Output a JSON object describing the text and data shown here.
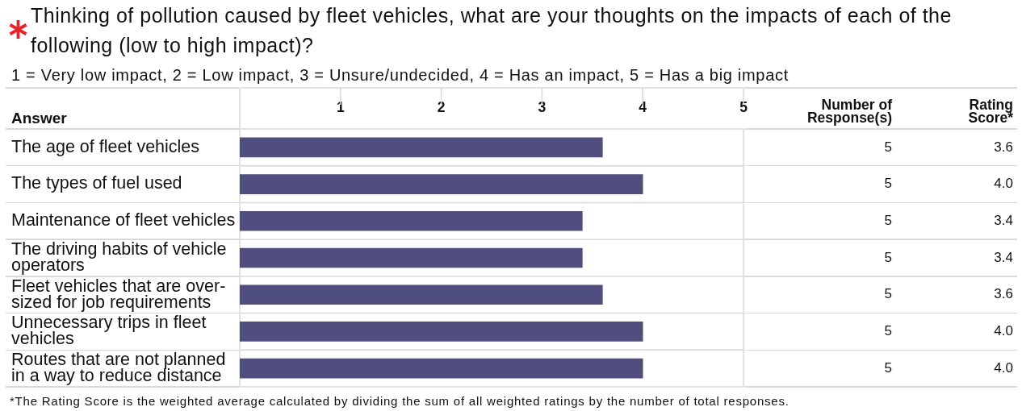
{
  "chart_data": {
    "type": "bar",
    "orientation": "horizontal",
    "title": "Thinking of pollution caused by fleet vehicles, what are your thoughts on the impacts of each of the following (low to high impact)?",
    "subtitle": "1 = Very low impact, 2 = Low impact, 3 = Unsure/undecided, 4 = Has an impact, 5 = Has a big impact",
    "ylabel": "Answer",
    "categories": [
      "The age of fleet vehicles",
      "The types of fuel used",
      "Maintenance of fleet vehicles",
      "The driving habits of vehicle operators",
      "Fleet vehicles that are over-sized for job requirements",
      "Unnecessary trips in fleet vehicles",
      "Routes that are not planned in a way to reduce distance"
    ],
    "values": [
      3.6,
      4.0,
      3.4,
      3.4,
      3.6,
      4.0,
      4.0
    ],
    "value_labels": [
      "3.6",
      "4.0",
      "3.4",
      "3.4",
      "3.6",
      "4.0",
      "4.0"
    ],
    "color": "#4f4e7e",
    "xlim": [
      0,
      5
    ],
    "xticks": [
      1,
      2,
      3,
      4,
      5
    ],
    "grid": true,
    "annotations": [
      "Number of Response(s)",
      "Rating Score*",
      "5",
      "5",
      "5",
      "5",
      "5",
      "5",
      "5",
      "*The Rating Score is the weighted average calculated by dividing the sum of all weighted ratings by the number of total responses."
    ]
  }
}
